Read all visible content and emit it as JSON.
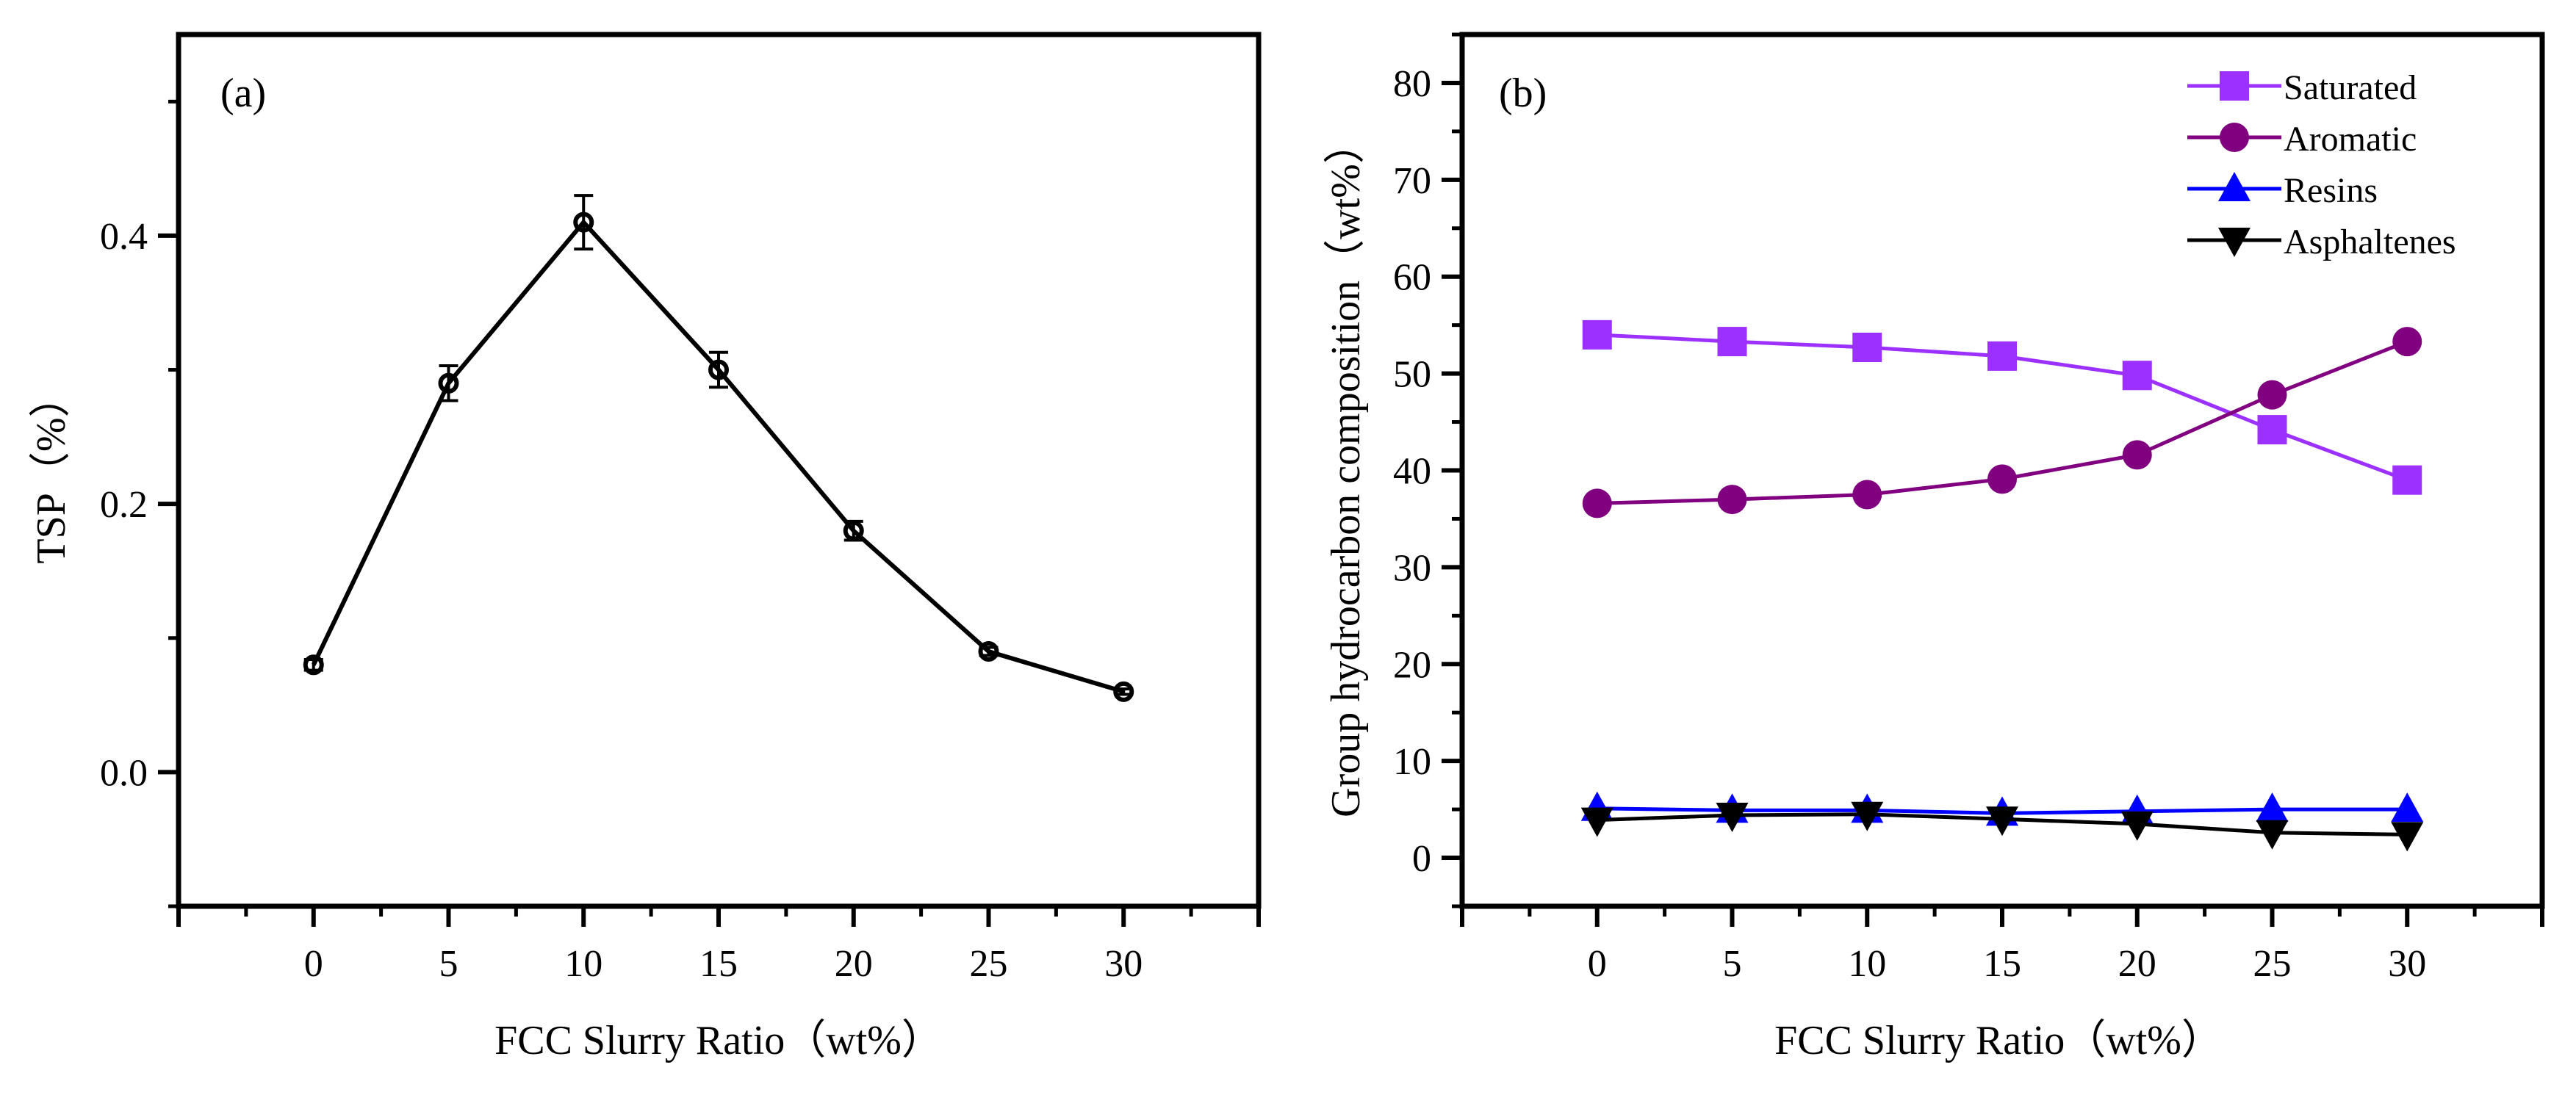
{
  "chart_data": [
    {
      "type": "line",
      "panel_label": "(a)",
      "title": "",
      "xlabel": "FCC Slurry Ratio（wt%）",
      "ylabel": "TSP（%）",
      "x": [
        0,
        5,
        10,
        15,
        20,
        25,
        30
      ],
      "x_ticks": [
        "0",
        "5",
        "10",
        "15",
        "20",
        "25",
        "30"
      ],
      "xlim": [
        -5,
        35
      ],
      "ylim": [
        -0.1,
        0.55
      ],
      "y_ticks": [
        "0.0",
        "0.2",
        "0.4"
      ],
      "grid": false,
      "series": [
        {
          "values": [
            0.08,
            0.29,
            0.41,
            0.3,
            0.18,
            0.09,
            0.06
          ],
          "errors": [
            0.004,
            0.013,
            0.02,
            0.013,
            0.007,
            0.003,
            0.002
          ],
          "color": "#000000",
          "marker": "circle"
        }
      ]
    },
    {
      "type": "line",
      "panel_label": "(b)",
      "title": "",
      "xlabel": "FCC Slurry Ratio（wt%）",
      "ylabel": "Group hydrocarbon composition（wt%）",
      "x": [
        0,
        5,
        10,
        15,
        20,
        25,
        30
      ],
      "x_ticks": [
        "0",
        "5",
        "10",
        "15",
        "20",
        "25",
        "30"
      ],
      "xlim": [
        -5,
        35
      ],
      "ylim": [
        -5,
        85
      ],
      "y_ticks": [
        "0",
        "10",
        "20",
        "30",
        "40",
        "50",
        "60",
        "70",
        "80"
      ],
      "grid": false,
      "legend_position": "top-right",
      "series": [
        {
          "name": "Saturated",
          "values": [
            54.0,
            53.3,
            52.7,
            51.8,
            49.8,
            44.2,
            39.0
          ],
          "color": "#9b30ff",
          "marker": "square"
        },
        {
          "name": "Aromatic",
          "values": [
            36.6,
            37.0,
            37.5,
            39.1,
            41.6,
            47.8,
            53.3
          ],
          "color": "#800080",
          "marker": "circle"
        },
        {
          "name": "Resins",
          "values": [
            5.1,
            4.9,
            4.9,
            4.6,
            4.8,
            5.0,
            5.0
          ],
          "color": "#0000ff",
          "marker": "triangle-up"
        },
        {
          "name": "Asphaltenes",
          "values": [
            3.9,
            4.4,
            4.5,
            4.0,
            3.5,
            2.6,
            2.4
          ],
          "color": "#000000",
          "marker": "triangle-down"
        }
      ]
    }
  ]
}
